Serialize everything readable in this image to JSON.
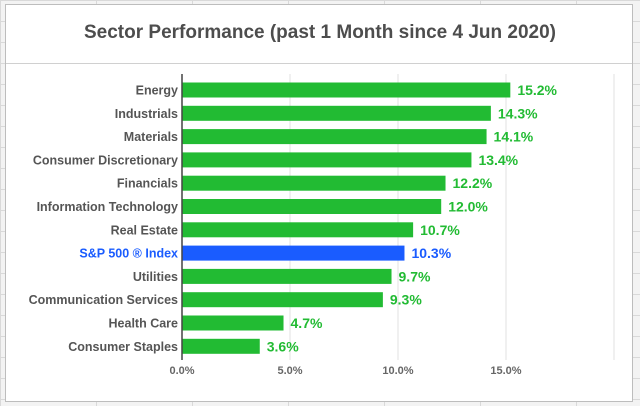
{
  "chart_data": {
    "type": "bar",
    "orientation": "horizontal",
    "title": "Sector Performance (past 1 Month since 4 Jun 2020)",
    "categories": [
      "Energy",
      "Industrials",
      "Materials",
      "Consumer Discretionary",
      "Financials",
      "Information Technology",
      "Real Estate",
      "S&P 500 ® Index",
      "Utilities",
      "Communication Services",
      "Health Care",
      "Consumer Staples"
    ],
    "values": [
      15.2,
      14.3,
      14.1,
      13.4,
      12.2,
      12.0,
      10.7,
      10.3,
      9.7,
      9.3,
      4.7,
      3.6
    ],
    "value_labels": [
      "15.2%",
      "14.3%",
      "14.1%",
      "13.4%",
      "12.2%",
      "12.0%",
      "10.7%",
      "10.3%",
      "9.7%",
      "9.3%",
      "4.7%",
      "3.6%"
    ],
    "highlight_index": 7,
    "xlim": [
      0,
      20
    ],
    "x_ticks": [
      0,
      5,
      10,
      15
    ],
    "x_tick_labels": [
      "0.0%",
      "5.0%",
      "10.0%",
      "15.0%"
    ],
    "xlabel": "",
    "ylabel": "",
    "grid": true,
    "colors": {
      "bar": "#22bb33",
      "highlight_bar": "#1a5cff",
      "label": "#22bb33",
      "highlight_label": "#1a5cff",
      "category_text": "#555555",
      "highlight_category_text": "#1a5cff",
      "grid": "#e0e0e0",
      "axis": "#444444"
    }
  }
}
